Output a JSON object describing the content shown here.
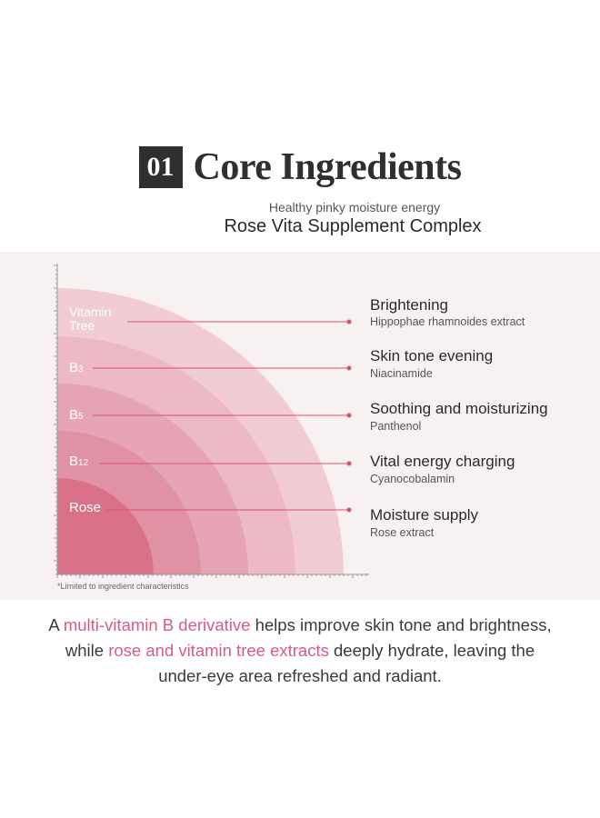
{
  "header": {
    "number": "01",
    "title": "Core Ingredients",
    "subtitle": "Healthy pinky moisture energy",
    "complex_name": "Rose Vita Supplement Complex"
  },
  "chart": {
    "layers": [
      {
        "label_main": "Vitamin",
        "label_sub": "Tree"
      },
      {
        "label_main": "B",
        "label_sub": "3"
      },
      {
        "label_main": "B",
        "label_sub": "5"
      },
      {
        "label_main": "B",
        "label_sub": "12"
      },
      {
        "label_main": "Rose",
        "label_sub": ""
      }
    ],
    "colors": [
      "#f1cdd3",
      "#ecb9c4",
      "#e6a5b4",
      "#e092a4",
      "#d97188"
    ],
    "line_color": "#dc4e74"
  },
  "benefits": [
    {
      "title": "Brightening",
      "ingredient": "Hippophae rhamnoides extract"
    },
    {
      "title": "Skin tone evening",
      "ingredient": "Niacinamide"
    },
    {
      "title": "Soothing and moisturizing",
      "ingredient": "Panthenol"
    },
    {
      "title": "Vital energy charging",
      "ingredient": "Cyanocobalamin"
    },
    {
      "title": "Moisture supply",
      "ingredient": "Rose extract"
    }
  ],
  "footnote": "*Limited to ingredient characteristics",
  "description": {
    "l1_a": "A ",
    "l1_hl": "multi-vitamin B derivative",
    "l1_b": " helps improve skin tone and brightness,",
    "l2_a": "while ",
    "l2_hl": "rose and vitamin tree extracts",
    "l2_b": " deeply hydrate, leaving the",
    "l3": "under-eye area refreshed and radiant."
  }
}
